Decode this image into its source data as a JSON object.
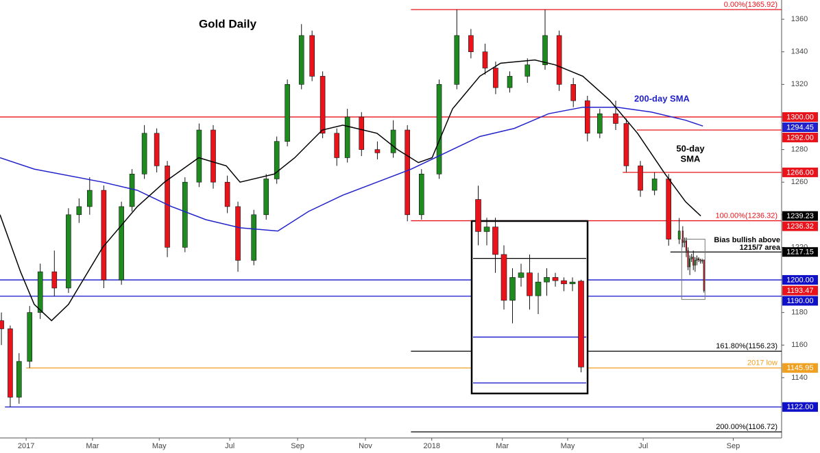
{
  "chart_data": {
    "type": "candlestick",
    "title": "Gold Daily",
    "xlim": [
      -0.74,
      21.4
    ],
    "xticks": [
      {
        "value": 0,
        "label": "2017"
      },
      {
        "value": 1.88,
        "label": "Mar"
      },
      {
        "value": 3.77,
        "label": "May"
      },
      {
        "value": 5.77,
        "label": "Jul"
      },
      {
        "value": 7.69,
        "label": "Sep"
      },
      {
        "value": 9.61,
        "label": "Nov"
      },
      {
        "value": 11.49,
        "label": "2018"
      },
      {
        "value": 13.49,
        "label": "Mar"
      },
      {
        "value": 15.34,
        "label": "May"
      },
      {
        "value": 17.48,
        "label": "Jul"
      },
      {
        "value": 20.03,
        "label": "Sep"
      }
    ],
    "ylim": [
      1103.0,
      1371.8
    ],
    "yticks": [
      1140,
      1160,
      1180,
      1200,
      1220,
      1240,
      1260,
      1280,
      1300,
      1320,
      1340,
      1360
    ],
    "up_color": "#1f8a1f",
    "down_color": "#e8131b",
    "series": {
      "x": [
        -0.7,
        -0.45,
        -0.2,
        0.1,
        0.4,
        0.8,
        1.2,
        1.5,
        1.8,
        2.2,
        2.7,
        3.0,
        3.35,
        3.7,
        4.0,
        4.5,
        4.9,
        5.3,
        5.7,
        6.0,
        6.45,
        6.8,
        7.1,
        7.4,
        7.8,
        8.1,
        8.4,
        8.8,
        9.1,
        9.5,
        9.95,
        10.4,
        10.8,
        11.2,
        11.7,
        12.2,
        12.6,
        13.0,
        13.3,
        13.7,
        14.2,
        14.7,
        15.1,
        15.5,
        15.9,
        16.25,
        16.7,
        17.0,
        17.4,
        17.8,
        18.2,
        18.5,
        18.6,
        18.65,
        18.7,
        18.75,
        18.8,
        18.85,
        18.9,
        18.95,
        19.0,
        19.05,
        19.1,
        19.15,
        19.2
      ],
      "open": [
        1175,
        1170,
        1128,
        1150,
        1180,
        1205,
        1195,
        1240,
        1245,
        1255,
        1200,
        1245,
        1265,
        1290,
        1270,
        1220,
        1260,
        1292,
        1260,
        1245,
        1212,
        1240,
        1262,
        1285,
        1320,
        1350,
        1325,
        1290,
        1275,
        1300,
        1280,
        1278,
        1292,
        1240,
        1265,
        1320,
        1350,
        1340,
        1330,
        1318,
        1325,
        1332,
        1350,
        1320,
        1310,
        1290,
        1302,
        1296,
        1270,
        1255,
        1262,
        1225,
        1230,
        1223,
        1224,
        1218,
        1208,
        1213,
        1214,
        1209,
        1212,
        1213,
        1212.3,
        1211.6,
        1212.2
      ],
      "high": [
        1180,
        1172,
        1155,
        1184,
        1210,
        1218,
        1244,
        1250,
        1263,
        1258,
        1248,
        1268,
        1295,
        1293,
        1273,
        1263,
        1296,
        1295,
        1264,
        1248,
        1243,
        1265,
        1288,
        1323,
        1357,
        1353,
        1328,
        1293,
        1305,
        1303,
        1285,
        1298,
        1295,
        1268,
        1323,
        1366,
        1354,
        1345,
        1334,
        1328,
        1336,
        1366,
        1353,
        1324,
        1313,
        1305,
        1310,
        1299,
        1273,
        1266,
        1265,
        1238,
        1233,
        1226,
        1226,
        1220,
        1215,
        1216,
        1218,
        1214,
        1215,
        1214,
        1213,
        1213,
        1212.5
      ],
      "low": [
        1160,
        1122,
        1124,
        1146,
        1176,
        1190,
        1192,
        1235,
        1240,
        1195,
        1197,
        1242,
        1262,
        1266,
        1214,
        1217,
        1257,
        1256,
        1241,
        1205,
        1209,
        1237,
        1259,
        1282,
        1317,
        1322,
        1287,
        1270,
        1272,
        1276,
        1274,
        1275,
        1236,
        1237,
        1262,
        1317,
        1336,
        1326,
        1314,
        1315,
        1321,
        1329,
        1316,
        1306,
        1285,
        1287,
        1292,
        1266,
        1251,
        1252,
        1221,
        1222,
        1220,
        1220,
        1214,
        1206,
        1203,
        1211,
        1206,
        1205,
        1209,
        1211,
        1210,
        1210,
        1192.3
      ],
      "close": [
        1170,
        1128,
        1150,
        1180,
        1205,
        1195,
        1240,
        1245,
        1255,
        1200,
        1245,
        1265,
        1290,
        1270,
        1220,
        1260,
        1292,
        1260,
        1245,
        1212,
        1240,
        1262,
        1285,
        1320,
        1350,
        1325,
        1290,
        1275,
        1300,
        1280,
        1278,
        1292,
        1240,
        1265,
        1320,
        1350,
        1340,
        1330,
        1318,
        1325,
        1332,
        1350,
        1320,
        1310,
        1290,
        1302,
        1296,
        1270,
        1255,
        1262,
        1225,
        1230,
        1223,
        1224,
        1218,
        1208,
        1213,
        1214,
        1209,
        1212,
        1213,
        1212.3,
        1211.6,
        1212,
        1193.47
      ]
    },
    "sma": [
      {
        "label_lines": [
          "200-day SMA"
        ],
        "color": "#2222cc",
        "x": [
          -0.74,
          0.23,
          2.17,
          3.15,
          4.12,
          5.09,
          6.06,
          7.13,
          8.0,
          8.97,
          9.94,
          10.91,
          11.88,
          12.85,
          13.83,
          14.8,
          15.77,
          16.74,
          17.71,
          18.68,
          19.17
        ],
        "values": [
          1275,
          1268,
          1260,
          1255,
          1245,
          1237,
          1232,
          1230,
          1242,
          1252,
          1260,
          1268,
          1278,
          1288,
          1293,
          1302,
          1306,
          1306,
          1303,
          1298,
          1294.45
        ]
      },
      {
        "label_lines": [
          "50-day",
          "SMA"
        ],
        "color": "#000000",
        "x": [
          -0.74,
          -0.16,
          0.23,
          0.72,
          1.2,
          2.17,
          3.15,
          3.92,
          4.89,
          5.67,
          6.06,
          7.03,
          7.61,
          8.39,
          8.97,
          9.94,
          10.52,
          11.11,
          11.5,
          12.08,
          12.85,
          13.44,
          14.41,
          14.99,
          15.77,
          16.54,
          17.32,
          18.1,
          18.68,
          19.11
        ],
        "values": [
          1240,
          1205,
          1185,
          1175,
          1185,
          1220,
          1245,
          1260,
          1275,
          1270,
          1260,
          1265,
          1275,
          1292,
          1295,
          1290,
          1280,
          1272,
          1275,
          1305,
          1325,
          1333,
          1335,
          1332,
          1325,
          1310,
          1290,
          1265,
          1248,
          1239.23
        ]
      }
    ],
    "levels": [
      {
        "value": 1365.92,
        "color": "#e8131b",
        "from": 10.9,
        "text": "0.00%(1365.92)"
      },
      {
        "value": 1300,
        "color": "#e8131b",
        "from": -0.74,
        "label": "1300.00"
      },
      {
        "value": 1292,
        "color": "#e8131b",
        "from": 17.3,
        "label": "1292.00"
      },
      {
        "value": 1266,
        "color": "#e8131b",
        "from": 16.9,
        "label": "1266.00"
      },
      {
        "value": 1236.32,
        "color": "#e8131b",
        "from": 10.9,
        "text": "100.00%(1236.32)",
        "label": "1236.32"
      },
      {
        "value": 1217.15,
        "color": "#000000",
        "from": 18.25,
        "label": "1217.15"
      },
      {
        "value": 1200,
        "color": "#1010c8",
        "from": -0.74,
        "label": "1200.00"
      },
      {
        "value": 1190,
        "color": "#1010c8",
        "from": -0.74,
        "label": "1190.00"
      },
      {
        "value": 1156.23,
        "color": "#000000",
        "from": 10.9,
        "text": "161.80%(1156.23)"
      },
      {
        "value": 1145.95,
        "color": "#f0a020",
        "from": 0,
        "text": "2017 low",
        "label": "1145.95"
      },
      {
        "value": 1122,
        "color": "#1010c8",
        "from": -0.6,
        "label": "1122.00"
      },
      {
        "value": 1106.72,
        "color": "#000000",
        "from": 10.9,
        "text": "200.00%(1106.72)"
      }
    ],
    "markers": [
      {
        "value": 1294.45,
        "label": "1294.45",
        "color": "#2222cc"
      },
      {
        "value": 1239.23,
        "label": "1239.23",
        "color": "#000000"
      },
      {
        "value": 1193.47,
        "label": "1193.47",
        "color": "#e8131b"
      }
    ],
    "note_lines": [
      "Bias bullish above",
      "1215/7 area"
    ],
    "inset": {
      "xlim": [
        18.57,
        19.23
      ],
      "ylim": [
        1188,
        1225
      ]
    }
  }
}
